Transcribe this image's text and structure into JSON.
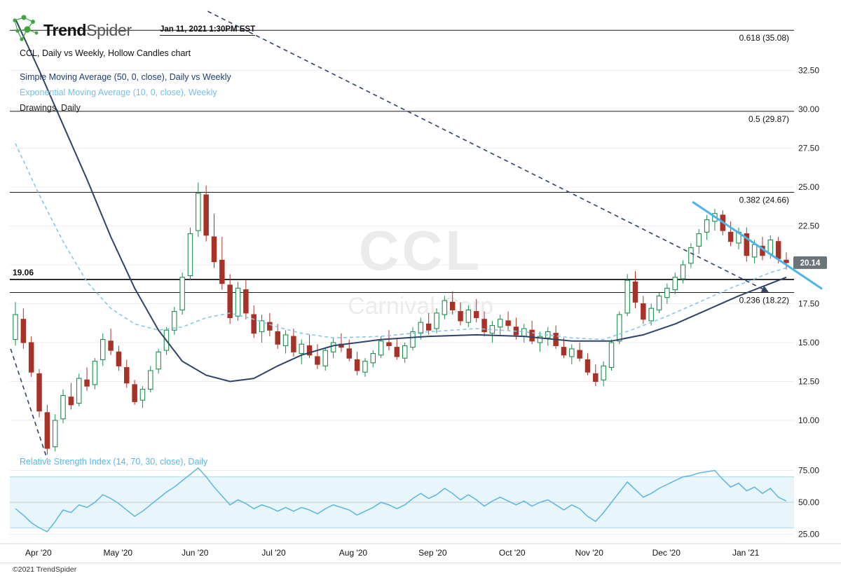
{
  "header": {
    "brand_bold": "Trend",
    "brand_light": "Spider",
    "timestamp": "Jan 11, 2021 1:30PM EST",
    "chart_title": "CCL, Daily vs Weekly, Hollow Candles chart",
    "legend": {
      "sma": "Simple Moving Average (50, 0, close), Daily vs Weekly",
      "ema": "Exponential Moving Average (10, 0, close), Weekly",
      "drawings": "Drawings, Daily"
    }
  },
  "watermark": {
    "symbol": "CCL",
    "company": "Carnival Corp"
  },
  "footer": {
    "copyright": "©2021 TrendSpider"
  },
  "colors": {
    "up": "#1e8e4e",
    "down": "#a93226",
    "sma": "#2e4369",
    "ema": "#85c7e8",
    "rsi": "#58b7e3",
    "trend_cyan": "#49b5e8",
    "badge_bg": "#6b7478",
    "fib": "#1a1a1a"
  },
  "chart_data": {
    "type": "candlestick",
    "candle_style": "Hollow Candles",
    "symbol": "CCL",
    "company": "Carnival Corp",
    "timeframe": "Daily vs Weekly",
    "price_axis": {
      "last_price": "20.14",
      "last_price_value": 20.14,
      "ticks": [
        {
          "label": "32.50",
          "v": 32.5
        },
        {
          "label": "30.00",
          "v": 30
        },
        {
          "label": "27.50",
          "v": 27.5
        },
        {
          "label": "25.00",
          "v": 25
        },
        {
          "label": "22.50",
          "v": 22.5
        },
        {
          "label": "20.00",
          "v": 20
        },
        {
          "label": "17.50",
          "v": 17.5
        },
        {
          "label": "15.00",
          "v": 15
        },
        {
          "label": "12.50",
          "v": 12.5
        },
        {
          "label": "10.00",
          "v": 10
        }
      ]
    },
    "x_axis_months": [
      {
        "label": "Apr '20",
        "i": 2.9
      },
      {
        "label": "May '20",
        "i": 12.9
      },
      {
        "label": "Jun '20",
        "i": 22.6
      },
      {
        "label": "Jul '20",
        "i": 32.5
      },
      {
        "label": "Aug '20",
        "i": 42.5
      },
      {
        "label": "Sep '20",
        "i": 52.5
      },
      {
        "label": "Oct '20",
        "i": 62.5
      },
      {
        "label": "Nov '20",
        "i": 72.2
      },
      {
        "label": "Dec '20",
        "i": 81.9
      },
      {
        "label": "Jan '21",
        "i": 91.9
      }
    ],
    "fib_levels": [
      {
        "label": "0.618 (35.08)",
        "value": 35.08
      },
      {
        "label": "0.5 (29.87)",
        "value": 29.87
      },
      {
        "label": "0.382 (24.66)",
        "value": 24.66
      },
      {
        "label": "0.236 (18.22)",
        "value": 18.22
      }
    ],
    "horizontal_level": {
      "label": "19.06",
      "value": 19.06
    },
    "candles": [
      [
        15.2,
        17.6,
        14.8,
        16.8
      ],
      [
        16.5,
        17.2,
        14.6,
        15.0
      ],
      [
        15.0,
        15.4,
        12.8,
        13.1
      ],
      [
        13.0,
        13.3,
        10.2,
        10.6
      ],
      [
        10.5,
        11.0,
        7.8,
        8.2
      ],
      [
        8.3,
        10.4,
        8.0,
        10.0
      ],
      [
        10.1,
        12.0,
        9.8,
        11.6
      ],
      [
        11.5,
        12.4,
        10.7,
        11.0
      ],
      [
        11.1,
        13.0,
        10.9,
        12.7
      ],
      [
        12.6,
        13.4,
        11.9,
        12.2
      ],
      [
        12.3,
        14.0,
        12.0,
        13.8
      ],
      [
        13.9,
        15.6,
        13.5,
        15.2
      ],
      [
        15.1,
        15.9,
        14.2,
        14.5
      ],
      [
        14.4,
        14.8,
        13.2,
        13.5
      ],
      [
        13.4,
        13.9,
        12.1,
        12.4
      ],
      [
        12.3,
        12.6,
        11.0,
        11.2
      ],
      [
        11.3,
        12.2,
        10.8,
        12.0
      ],
      [
        12.0,
        13.5,
        11.8,
        13.2
      ],
      [
        13.3,
        14.6,
        13.0,
        14.4
      ],
      [
        14.5,
        16.0,
        14.2,
        15.8
      ],
      [
        15.8,
        17.3,
        15.5,
        17.0
      ],
      [
        17.1,
        19.5,
        16.8,
        19.2
      ],
      [
        19.3,
        22.4,
        19.0,
        22.0
      ],
      [
        22.2,
        25.3,
        21.8,
        24.6
      ],
      [
        24.5,
        25.1,
        21.5,
        21.9
      ],
      [
        21.8,
        23.3,
        19.8,
        20.2
      ],
      [
        20.3,
        21.8,
        18.4,
        18.8
      ],
      [
        18.7,
        19.4,
        16.2,
        16.6
      ],
      [
        16.7,
        18.9,
        16.4,
        18.5
      ],
      [
        18.4,
        19.0,
        16.5,
        16.9
      ],
      [
        16.8,
        17.4,
        15.3,
        15.6
      ],
      [
        15.7,
        16.8,
        15.0,
        16.4
      ],
      [
        16.3,
        16.9,
        15.4,
        15.8
      ],
      [
        15.7,
        16.2,
        14.6,
        14.9
      ],
      [
        14.8,
        15.8,
        14.3,
        15.5
      ],
      [
        15.4,
        15.9,
        14.1,
        14.4
      ],
      [
        14.3,
        15.2,
        13.6,
        14.9
      ],
      [
        14.8,
        15.5,
        14.0,
        14.2
      ],
      [
        14.1,
        14.9,
        13.3,
        13.6
      ],
      [
        13.5,
        14.7,
        13.2,
        14.5
      ],
      [
        14.4,
        15.3,
        14.0,
        15.0
      ],
      [
        14.9,
        15.6,
        14.4,
        14.7
      ],
      [
        14.6,
        15.2,
        13.8,
        14.0
      ],
      [
        13.9,
        14.4,
        12.9,
        13.2
      ],
      [
        13.1,
        14.0,
        12.8,
        13.8
      ],
      [
        13.7,
        14.5,
        13.4,
        14.3
      ],
      [
        14.2,
        15.4,
        14.0,
        15.1
      ],
      [
        15.0,
        15.8,
        14.5,
        14.8
      ],
      [
        14.7,
        15.3,
        13.9,
        14.1
      ],
      [
        14.0,
        15.0,
        13.7,
        14.8
      ],
      [
        14.7,
        16.0,
        14.5,
        15.7
      ],
      [
        15.6,
        16.6,
        15.2,
        16.3
      ],
      [
        16.2,
        16.9,
        15.5,
        15.8
      ],
      [
        15.9,
        17.2,
        15.6,
        16.9
      ],
      [
        16.8,
        18.0,
        16.5,
        17.7
      ],
      [
        17.6,
        18.3,
        16.8,
        17.1
      ],
      [
        17.0,
        17.6,
        16.1,
        16.4
      ],
      [
        16.3,
        17.4,
        16.0,
        17.1
      ],
      [
        17.0,
        17.8,
        16.3,
        16.6
      ],
      [
        16.5,
        17.0,
        15.4,
        15.7
      ],
      [
        15.6,
        16.4,
        15.0,
        16.1
      ],
      [
        16.0,
        16.8,
        15.5,
        16.5
      ],
      [
        16.4,
        17.0,
        15.8,
        16.1
      ],
      [
        16.0,
        16.6,
        15.2,
        15.5
      ],
      [
        15.4,
        16.2,
        15.0,
        15.9
      ],
      [
        15.8,
        16.4,
        14.9,
        15.1
      ],
      [
        15.0,
        15.7,
        14.4,
        15.4
      ],
      [
        15.3,
        16.0,
        14.8,
        15.7
      ],
      [
        15.6,
        16.1,
        14.6,
        14.8
      ],
      [
        14.7,
        15.3,
        14.0,
        14.2
      ],
      [
        14.1,
        14.9,
        13.6,
        14.6
      ],
      [
        14.5,
        15.0,
        13.8,
        14.0
      ],
      [
        13.9,
        14.3,
        12.9,
        13.1
      ],
      [
        13.0,
        13.6,
        12.2,
        12.5
      ],
      [
        12.6,
        13.8,
        12.2,
        13.5
      ],
      [
        13.4,
        15.2,
        13.2,
        15.0
      ],
      [
        15.1,
        17.0,
        14.9,
        16.8
      ],
      [
        16.9,
        19.4,
        16.7,
        19.0
      ],
      [
        18.9,
        19.6,
        17.2,
        17.6
      ],
      [
        17.5,
        18.0,
        16.2,
        16.5
      ],
      [
        16.4,
        17.5,
        16.1,
        17.2
      ],
      [
        17.1,
        18.2,
        16.9,
        18.0
      ],
      [
        17.9,
        18.8,
        17.5,
        18.5
      ],
      [
        18.4,
        19.5,
        18.1,
        19.2
      ],
      [
        19.1,
        20.3,
        18.8,
        20.0
      ],
      [
        20.1,
        21.4,
        19.8,
        21.1
      ],
      [
        21.2,
        22.3,
        20.7,
        22.0
      ],
      [
        22.1,
        23.2,
        21.6,
        22.9
      ],
      [
        22.8,
        23.6,
        22.2,
        23.3
      ],
      [
        23.2,
        23.5,
        21.9,
        22.2
      ],
      [
        22.1,
        22.8,
        21.2,
        21.5
      ],
      [
        21.4,
        22.4,
        21.0,
        22.1
      ],
      [
        22.0,
        22.4,
        20.2,
        20.6
      ],
      [
        20.5,
        21.6,
        20.1,
        21.3
      ],
      [
        21.2,
        21.8,
        20.3,
        20.6
      ],
      [
        20.7,
        21.9,
        20.4,
        21.6
      ],
      [
        21.5,
        21.8,
        20.1,
        20.4
      ],
      [
        20.3,
        20.8,
        19.7,
        20.14
      ]
    ],
    "indicators": {
      "sma50_weekly": {
        "name": "Simple Moving Average (50, 0, close), Daily vs Weekly",
        "points": [
          [
            0,
            35.8
          ],
          [
            3,
            32.5
          ],
          [
            6,
            29.0
          ],
          [
            9,
            25.5
          ],
          [
            12,
            21.8
          ],
          [
            15,
            18.5
          ],
          [
            18,
            15.8
          ],
          [
            21,
            13.8
          ],
          [
            24,
            12.9
          ],
          [
            27,
            12.5
          ],
          [
            30,
            12.7
          ],
          [
            33,
            13.5
          ],
          [
            36,
            14.2
          ],
          [
            40,
            14.8
          ],
          [
            46,
            15.2
          ],
          [
            52,
            15.4
          ],
          [
            58,
            15.5
          ],
          [
            64,
            15.4
          ],
          [
            70,
            15.1
          ],
          [
            75,
            15.1
          ],
          [
            79,
            15.5
          ],
          [
            83,
            16.2
          ],
          [
            87,
            17.1
          ],
          [
            91,
            18.0
          ],
          [
            94,
            18.6
          ],
          [
            97,
            19.2
          ]
        ]
      },
      "ema10_weekly": {
        "name": "Exponential Moving Average (10, 0, close), Weekly",
        "points": [
          [
            0,
            27.8
          ],
          [
            3,
            24.5
          ],
          [
            6,
            21.5
          ],
          [
            9,
            18.9
          ],
          [
            12,
            17.2
          ],
          [
            15,
            16.2
          ],
          [
            18,
            15.8
          ],
          [
            21,
            16.0
          ],
          [
            24,
            16.6
          ],
          [
            27,
            16.9
          ],
          [
            30,
            16.5
          ],
          [
            33,
            16.0
          ],
          [
            36,
            15.6
          ],
          [
            40,
            15.3
          ],
          [
            46,
            15.4
          ],
          [
            52,
            15.7
          ],
          [
            58,
            15.9
          ],
          [
            64,
            15.7
          ],
          [
            70,
            15.3
          ],
          [
            74,
            15.2
          ],
          [
            78,
            15.9
          ],
          [
            82,
            16.7
          ],
          [
            86,
            17.6
          ],
          [
            90,
            18.5
          ],
          [
            93,
            19.1
          ],
          [
            95,
            19.5
          ],
          [
            97,
            19.8
          ]
        ]
      },
      "rsi": {
        "name": "Relative Strength Index (14, 70, 30, close), Daily",
        "upper_band": 70,
        "lower_band": 30,
        "midline": 50,
        "ticks": [
          {
            "label": "75.00",
            "v": 75
          },
          {
            "label": "50.00",
            "v": 50
          },
          {
            "label": "25.00",
            "v": 25
          }
        ],
        "values": [
          45,
          40,
          34,
          30,
          27,
          35,
          44,
          42,
          48,
          46,
          50,
          56,
          53,
          49,
          44,
          39,
          43,
          48,
          53,
          58,
          62,
          67,
          72,
          77,
          70,
          62,
          55,
          48,
          52,
          49,
          45,
          48,
          46,
          43,
          46,
          43,
          46,
          44,
          41,
          45,
          48,
          46,
          44,
          40,
          43,
          46,
          50,
          48,
          45,
          48,
          53,
          57,
          53,
          56,
          61,
          57,
          52,
          56,
          52,
          47,
          51,
          54,
          51,
          48,
          51,
          47,
          50,
          52,
          48,
          44,
          48,
          45,
          39,
          35,
          42,
          50,
          58,
          66,
          60,
          54,
          57,
          61,
          64,
          67,
          70,
          71,
          73,
          74,
          75,
          68,
          62,
          65,
          59,
          62,
          57,
          61,
          54,
          51
        ]
      }
    },
    "trendlines": [
      {
        "name": "primary-downtrend-line",
        "style": "dashed",
        "color": "#2e4369",
        "width": 1.6,
        "x1": 24.2,
        "p1": 36.3,
        "x2": 94.0,
        "p2": 18.45,
        "arrow": true
      },
      {
        "name": "april-downtrend-segment",
        "style": "dashed",
        "color": "#2e4369",
        "width": 1.6,
        "x1": -0.6,
        "p1": 14.6,
        "x2": 4.0,
        "p2": 7.5,
        "arrow": false
      },
      {
        "name": "december-downtrend-line",
        "style": "solid",
        "color": "#49b5e8",
        "width": 3,
        "x1": 85.2,
        "p1": 24.05,
        "x2": 101.5,
        "p2": 18.45,
        "arrow": false
      }
    ]
  }
}
